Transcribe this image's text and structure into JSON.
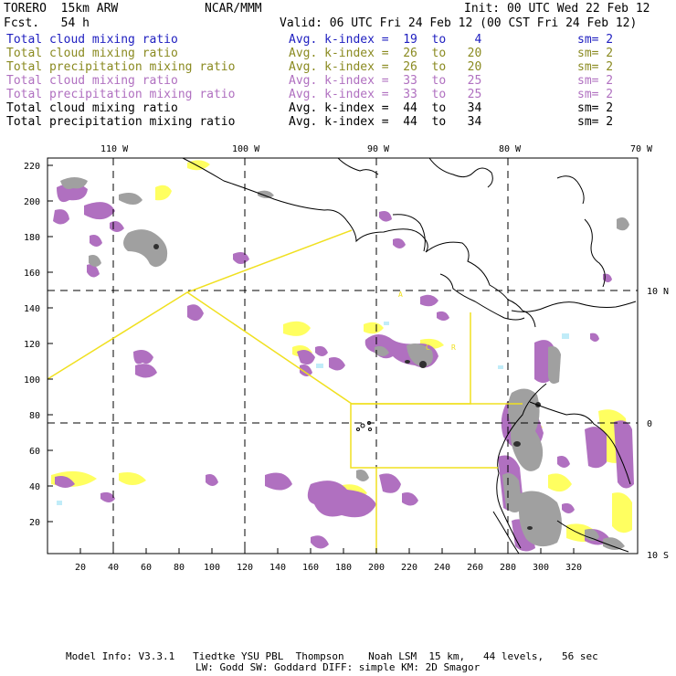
{
  "header": {
    "model": "TORERO  15km ARW",
    "org": "NCAR/MMM",
    "init": "Init: 00 UTC Wed 22 Feb 12",
    "fcst": "Fcst.   54 h",
    "valid": "Valid: 06 UTC Fri 24 Feb 12 (00 CST Fri 24 Feb 12)"
  },
  "legend": [
    {
      "field": "Total cloud mixing ratio",
      "index": "Avg. k-index =  19  to    4",
      "sm": "sm= 2",
      "color": "#2020c0"
    },
    {
      "field": "Total cloud mixing ratio",
      "index": "Avg. k-index =  26  to   20",
      "sm": "sm= 2",
      "color": "#8a8a20"
    },
    {
      "field": "Total precipitation mixing ratio",
      "index": "Avg. k-index =  26  to   20",
      "sm": "sm= 2",
      "color": "#8a8a20"
    },
    {
      "field": "Total cloud mixing ratio",
      "index": "Avg. k-index =  33  to   25",
      "sm": "sm= 2",
      "color": "#b070c0"
    },
    {
      "field": "Total precipitation mixing ratio",
      "index": "Avg. k-index =  33  to   25",
      "sm": "sm= 2",
      "color": "#b070c0"
    },
    {
      "field": "Total cloud mixing ratio",
      "index": "Avg. k-index =  44  to   34",
      "sm": "sm= 2",
      "color": "#000000"
    },
    {
      "field": "Total precipitation mixing ratio",
      "index": "Avg. k-index =  44  to   34",
      "sm": "sm= 2",
      "color": "#000000"
    }
  ],
  "map": {
    "lon_labels": [
      "110 W",
      "100 W",
      "90 W",
      "80 W",
      "70 W"
    ],
    "lat_labels": [
      "10 N",
      "0",
      "10 S"
    ],
    "y_ticks": [
      "220",
      "200",
      "180",
      "160",
      "140",
      "120",
      "100",
      "80",
      "60",
      "40",
      "20"
    ],
    "x_ticks": [
      "20",
      "40",
      "60",
      "80",
      "100",
      "120",
      "140",
      "160",
      "180",
      "200",
      "220",
      "240",
      "260",
      "280",
      "300",
      "320"
    ],
    "colors": {
      "cloud_yellow": "#ffff60",
      "precip_purple": "#b070c0",
      "cloud_gray": "#a0a0a0",
      "domain_box": "#f0e020",
      "light_blue": "#c0ecf8"
    },
    "domain_marks": [
      "A",
      "C",
      "R"
    ]
  },
  "footer": {
    "line1": "Model Info: V3.3.1   Tiedtke YSU PBL  Thompson    Noah LSM  15 km,   44 levels,   56 sec",
    "line2": "LW: Godd SW: Goddard DIFF: simple KM: 2D Smagor"
  }
}
